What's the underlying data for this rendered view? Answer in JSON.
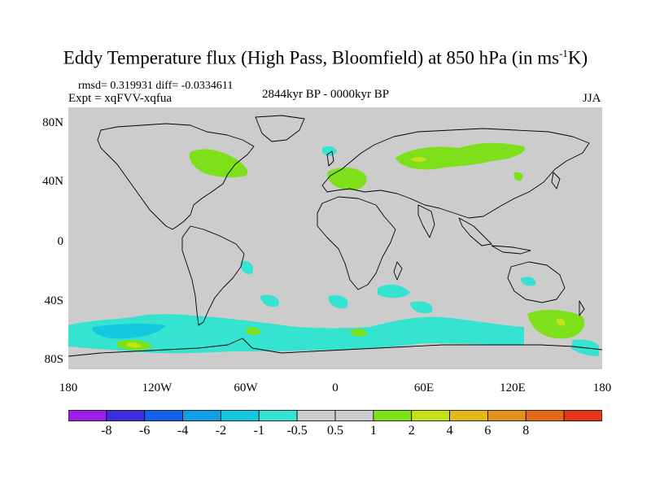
{
  "title_main": "Eddy Temperature flux (High Pass, Bloomfield) at 850 hPa (in ms",
  "title_sup": "-1",
  "title_end": "K)",
  "stats": "rmsd= 0.319931 diff= -0.0334611",
  "expt": "Expt = xqFVV-xqfua",
  "period": "2844kyr BP - 0000kyr BP",
  "season": "JJA",
  "lat_labels": [
    "80N",
    "40N",
    "0",
    "40S",
    "80S"
  ],
  "lon_labels": [
    "180",
    "120W",
    "60W",
    "0",
    "60E",
    "120E",
    "180"
  ],
  "colorbar": {
    "colors": [
      "#9b1fe8",
      "#3b2ee0",
      "#1560e8",
      "#129ee6",
      "#14c8e0",
      "#34e3d0",
      "#cccccc",
      "#cccccc",
      "#7ee01b",
      "#c7e01c",
      "#e3b81a",
      "#e0921a",
      "#e36818",
      "#e8361a"
    ],
    "labels": [
      "-8",
      "-6",
      "-4",
      "-2",
      "-1",
      "-0.5",
      "0.5",
      "1",
      "2",
      "4",
      "6",
      "8"
    ]
  },
  "map_colors": {
    "land_ocean": "#cccccc",
    "neg_weak": "#34e3d0",
    "neg_mid": "#14c8e0",
    "pos_weak": "#7ee01b",
    "pos_mid": "#c7e01c"
  }
}
